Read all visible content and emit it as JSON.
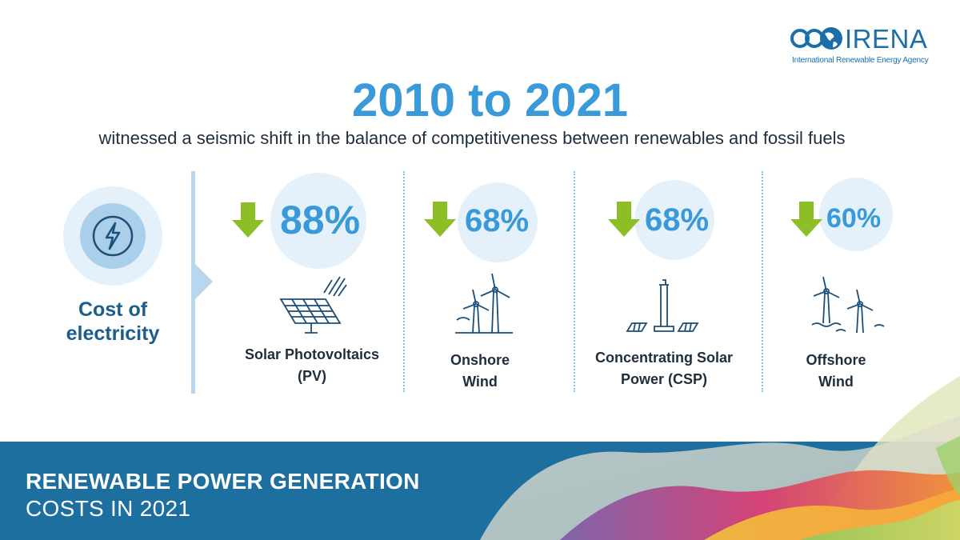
{
  "brand": {
    "name": "IRENA",
    "tagline": "International Renewable Energy Agency",
    "color": "#1b6ea8"
  },
  "header": {
    "title": "2010 to 2021",
    "subtitle": "witnessed a seismic shift in the balance of competitiveness between renewables and fossil fuels"
  },
  "left": {
    "label_line1": "Cost of",
    "label_line2": "electricity",
    "icon": "lightning-bolt-icon"
  },
  "technologies": [
    {
      "percent": "88%",
      "label_line1": "Solar Photovoltaics",
      "label_line2": "(PV)",
      "icon": "solar-panel-icon",
      "trend": "down-arrow-icon"
    },
    {
      "percent": "68%",
      "label_line1": "Onshore",
      "label_line2": "Wind",
      "icon": "onshore-wind-icon",
      "trend": "down-arrow-icon"
    },
    {
      "percent": "68%",
      "label_line1": "Concentrating Solar",
      "label_line2": "Power (CSP)",
      "icon": "csp-tower-icon",
      "trend": "down-arrow-icon"
    },
    {
      "percent": "60%",
      "label_line1": "Offshore",
      "label_line2": "Wind",
      "icon": "offshore-wind-icon",
      "trend": "down-arrow-icon"
    }
  ],
  "footer": {
    "title": "RENEWABLE POWER GENERATION",
    "subtitle": "COSTS IN 2021"
  },
  "colors": {
    "accent": "#3a9ad9",
    "arrow": "#8cbf26",
    "band": "#1d6fa0",
    "light": "#e4f1fa"
  }
}
